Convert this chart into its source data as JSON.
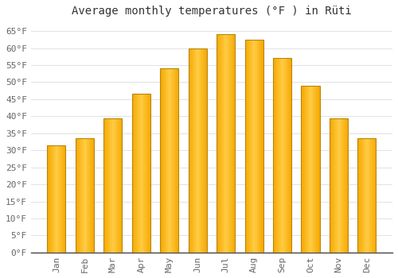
{
  "title": "Average monthly temperatures (°F ) in Rüti",
  "months": [
    "Jan",
    "Feb",
    "Mar",
    "Apr",
    "May",
    "Jun",
    "Jul",
    "Aug",
    "Sep",
    "Oct",
    "Nov",
    "Dec"
  ],
  "values": [
    31.5,
    33.5,
    39.5,
    46.5,
    54.0,
    60.0,
    64.0,
    62.5,
    57.0,
    49.0,
    39.5,
    33.5
  ],
  "bar_color_center": "#FFCC44",
  "bar_color_edge": "#F5A800",
  "bar_edge_color": "#B8860B",
  "background_color": "#FFFFFF",
  "plot_bg_color": "#FFFFFF",
  "grid_color": "#DDDDDD",
  "ylim": [
    0,
    68
  ],
  "yticks": [
    0,
    5,
    10,
    15,
    20,
    25,
    30,
    35,
    40,
    45,
    50,
    55,
    60,
    65
  ],
  "title_fontsize": 10,
  "tick_fontsize": 8,
  "title_color": "#333333",
  "tick_color": "#666666",
  "bar_width": 0.65
}
